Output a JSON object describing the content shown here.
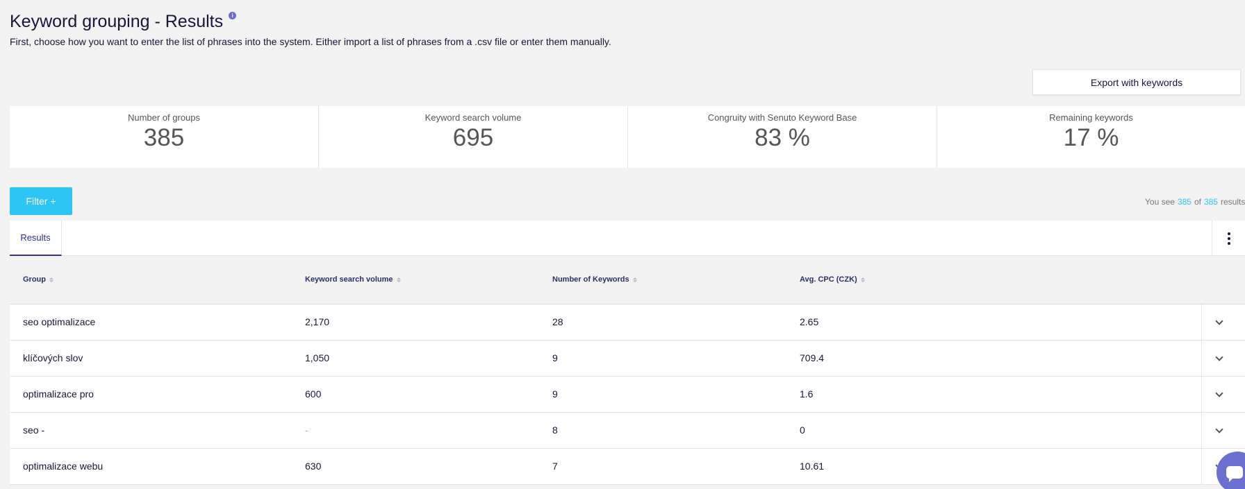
{
  "header": {
    "title": "Keyword grouping  - Results",
    "description": "First, choose how you want to enter the list of phrases into the system. Either import a list of phrases from a .csv file or enter them manually.",
    "info_icon": "info-icon"
  },
  "toolbar": {
    "export_label": "Export with keywords",
    "filter_label": "Filter +"
  },
  "stats": [
    {
      "label": "Number of groups",
      "value": "385"
    },
    {
      "label": "Keyword search volume",
      "value": "695"
    },
    {
      "label": "Congruity with Senuto Keyword Base",
      "value": "83 %"
    },
    {
      "label": "Remaining keywords",
      "value": "17 %"
    }
  ],
  "results_info": {
    "prefix": "You see",
    "shown": "385",
    "middle": "of",
    "total": "385",
    "suffix": "results"
  },
  "tabs": [
    {
      "label": "Results",
      "active": true
    }
  ],
  "table": {
    "columns": [
      "Group",
      "Keyword search volume",
      "Number of Keywords",
      "Avg. CPC (CZK)"
    ],
    "rows": [
      [
        "seo optimalizace",
        "2,170",
        "28",
        "2.65"
      ],
      [
        "klíčových slov",
        "1,050",
        "9",
        "709.4"
      ],
      [
        "optimalizace pro",
        "600",
        "9",
        "1.6"
      ],
      [
        "seo -",
        "-",
        "8",
        "0"
      ],
      [
        "optimalizace webu",
        "630",
        "7",
        "10.61"
      ]
    ]
  },
  "colors": {
    "accent": "#2dc6f4",
    "primary_text": "#14163a",
    "tab_active": "#2b2e9b",
    "chat": "#6b6fd0"
  }
}
